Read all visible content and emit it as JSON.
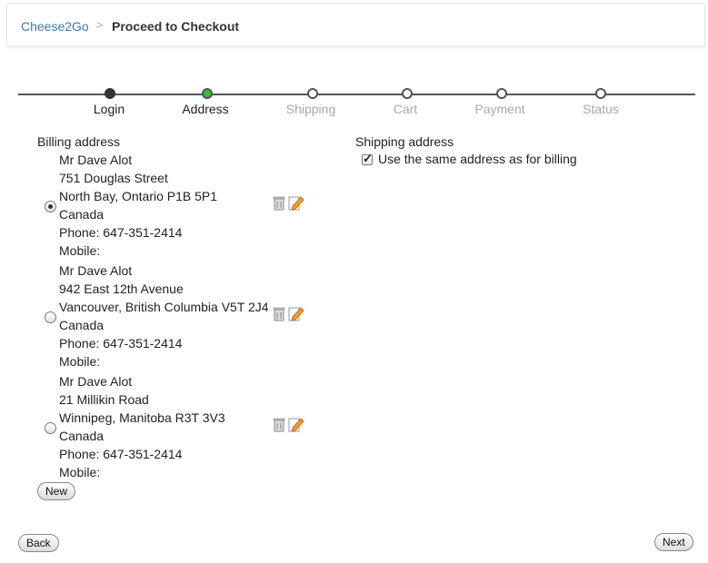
{
  "breadcrumb": {
    "home": "Cheese2Go",
    "separator": ">",
    "current": "Proceed to Checkout"
  },
  "steps": [
    {
      "label": "Login",
      "state": "done"
    },
    {
      "label": "Address",
      "state": "current"
    },
    {
      "label": "Shipping",
      "state": "pending"
    },
    {
      "label": "Cart",
      "state": "pending"
    },
    {
      "label": "Payment",
      "state": "pending"
    },
    {
      "label": "Status",
      "state": "pending"
    }
  ],
  "billing": {
    "title": "Billing address",
    "addresses": [
      {
        "name": "Mr Dave Alot",
        "street": "751 Douglas Street",
        "city": "North Bay, Ontario P1B 5P1",
        "country": "Canada",
        "phone": "Phone: 647-351-2414",
        "mobile": "Mobile:",
        "selected": true
      },
      {
        "name": "Mr Dave Alot",
        "street": "942 East 12th Avenue",
        "city": "Vancouver, British Columbia V5T 2J4",
        "country": "Canada",
        "phone": "Phone: 647-351-2414",
        "mobile": "Mobile:",
        "selected": false
      },
      {
        "name": "Mr Dave Alot",
        "street": "21 Millikin Road",
        "city": "Winnipeg, Manitoba R3T 3V3",
        "country": "Canada",
        "phone": "Phone: 647-351-2414",
        "mobile": "Mobile:",
        "selected": false
      }
    ],
    "new_label": "New"
  },
  "shipping": {
    "title": "Shipping address",
    "same_as_billing_label": "Use the same address as for billing",
    "same_as_billing_checked": true
  },
  "nav": {
    "back_label": "Back",
    "next_label": "Next"
  },
  "colors": {
    "link": "#3c79b5",
    "current_step": "#2ec13a",
    "inactive_step_text": "#a8a8a8"
  },
  "icons": {
    "delete": "trash-icon",
    "edit": "edit-icon"
  }
}
